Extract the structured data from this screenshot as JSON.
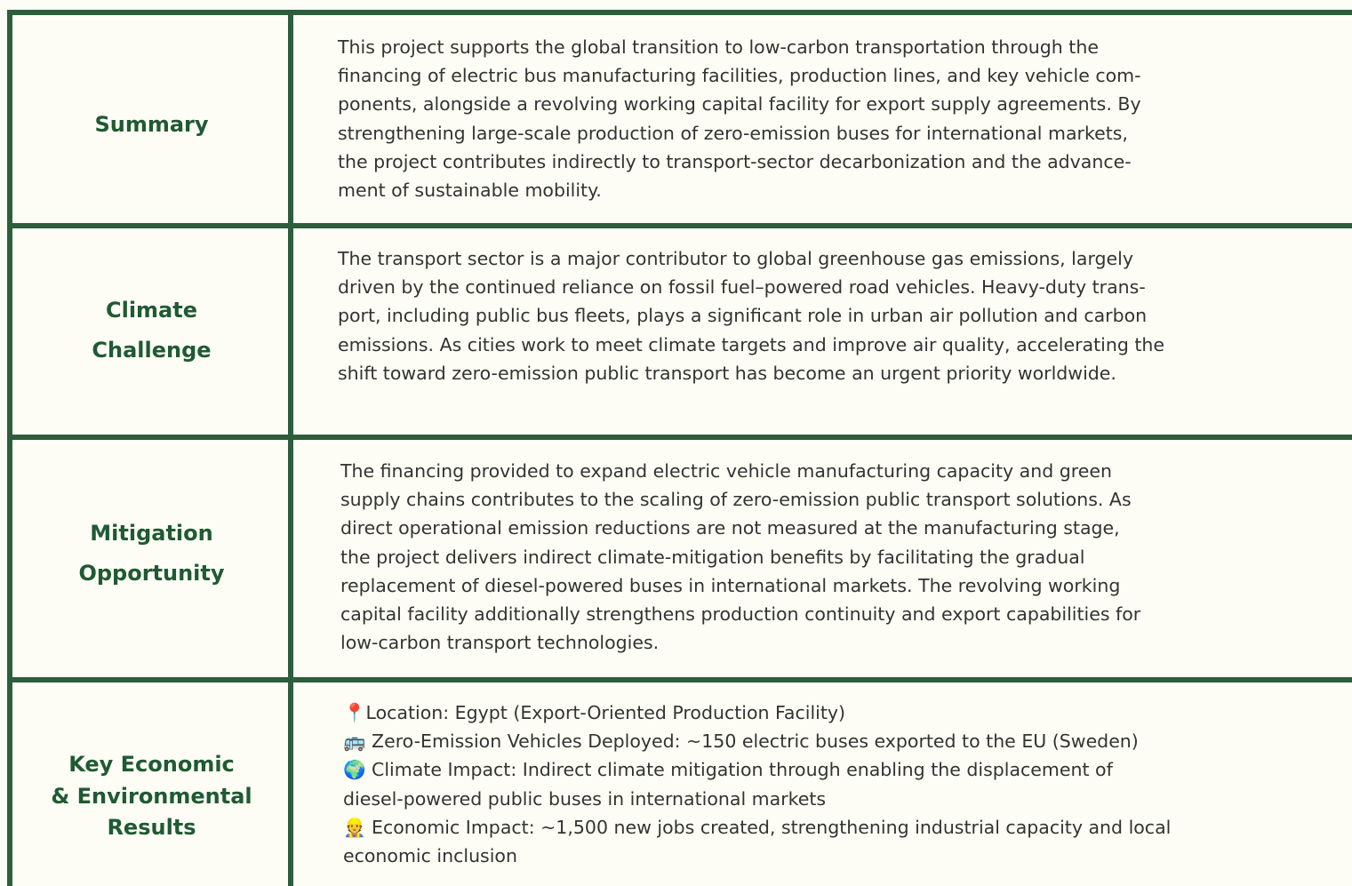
{
  "table": {
    "rows": [
      {
        "label": [
          "Summary"
        ],
        "text": [
          "This project supports the global transition to low-carbon transportation through the",
          "financing of electric bus manufacturing facilities, production lines, and key vehicle com-",
          "ponents, alongside a revolving working capital facility for export supply agreements. By",
          "strengthening large-scale production of zero-emission buses for international markets,",
          "the project contributes indirectly to transport-sector decarbonization and the advance-",
          "ment of sustainable mobility."
        ]
      },
      {
        "label": [
          "Climate",
          "Challenge"
        ],
        "text": [
          "The transport sector is a major contributor to global greenhouse gas emissions, largely",
          "driven by the continued reliance on fossil fuel–powered road vehicles. Heavy-duty trans-",
          "port, including public bus fleets, plays a significant role in urban air pollution and carbon",
          "emissions. As cities work to meet climate targets and improve air quality, accelerating the",
          "shift toward zero-emission public transport has become an urgent priority worldwide."
        ]
      },
      {
        "label": [
          "Mitigation",
          "Opportunity"
        ],
        "text": [
          "The financing provided to expand electric vehicle manufacturing capacity and green",
          "supply chains contributes to the scaling of zero-emission public transport solutions. As",
          "direct operational emission reductions are not measured at the manufacturing stage,",
          "the project delivers indirect climate-mitigation benefits by facilitating the gradual",
          "replacement of diesel-powered buses in international markets. The revolving working",
          "capital facility additionally strengthens production continuity and export capabilities for",
          "low-carbon transport technologies."
        ]
      },
      {
        "label": [
          "Key Economic",
          "& Environmental",
          "Results"
        ],
        "text": [
          "📍Location: Egypt (Export-Oriented Production Facility)",
          "🚌 Zero-Emission Vehicles Deployed: ~150 electric buses exported to the EU (Sweden)",
          "🌍 Climate Impact: Indirect climate mitigation through enabling the displacement of",
          "diesel-powered public buses in international markets",
          "👷 Economic Impact: ~1,500 new jobs created, strengthening industrial capacity and local",
          "economic inclusion"
        ]
      }
    ]
  }
}
